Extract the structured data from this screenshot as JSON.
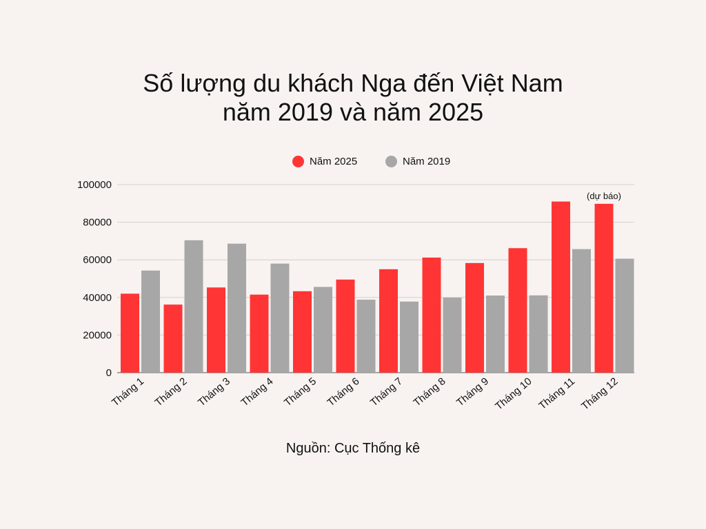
{
  "title": {
    "line1": "Số lượng du khách Nga đến Việt Nam",
    "line2": "năm 2019 và năm 2025"
  },
  "source": "Nguồn: Cục Thống kê",
  "colors": {
    "y2025": "#ff3535",
    "y2019": "#a7a7a7",
    "grid": "#d4d0ce"
  },
  "chart_data": {
    "type": "bar",
    "categories": [
      "Tháng 1",
      "Tháng 2",
      "Tháng 3",
      "Tháng 4",
      "Tháng 5",
      "Tháng 6",
      "Tháng 7",
      "Tháng 8",
      "Tháng 9",
      "Tháng 10",
      "Tháng 11",
      "Tháng 12"
    ],
    "series": [
      {
        "name": "Năm 2025",
        "color": "#ff3535",
        "values": [
          42000,
          36200,
          45300,
          41500,
          43300,
          49500,
          55000,
          61200,
          58300,
          66200,
          91000,
          89800
        ]
      },
      {
        "name": "Năm 2019",
        "color": "#a7a7a7",
        "values": [
          54300,
          70400,
          68600,
          58000,
          45600,
          38800,
          37800,
          39900,
          41000,
          41100,
          65700,
          60600
        ]
      }
    ],
    "ylim": [
      0,
      100000
    ],
    "yticks": [
      0,
      20000,
      40000,
      60000,
      80000,
      100000
    ],
    "grid": true,
    "legend_position": "top-center",
    "annotations": [
      {
        "category": "Tháng 12",
        "series": "Năm 2025",
        "text": "(dự báo)"
      }
    ]
  }
}
